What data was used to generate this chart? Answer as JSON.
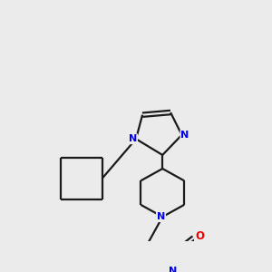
{
  "background_color": "#ebebeb",
  "bond_color": "#1a1a1a",
  "N_color": "#0000ee",
  "O_color": "#ee0000",
  "linewidth": 1.6,
  "figsize": [
    3.0,
    3.0
  ],
  "dpi": 100,
  "xlim": [
    0,
    300
  ],
  "ylim": [
    0,
    300
  ]
}
